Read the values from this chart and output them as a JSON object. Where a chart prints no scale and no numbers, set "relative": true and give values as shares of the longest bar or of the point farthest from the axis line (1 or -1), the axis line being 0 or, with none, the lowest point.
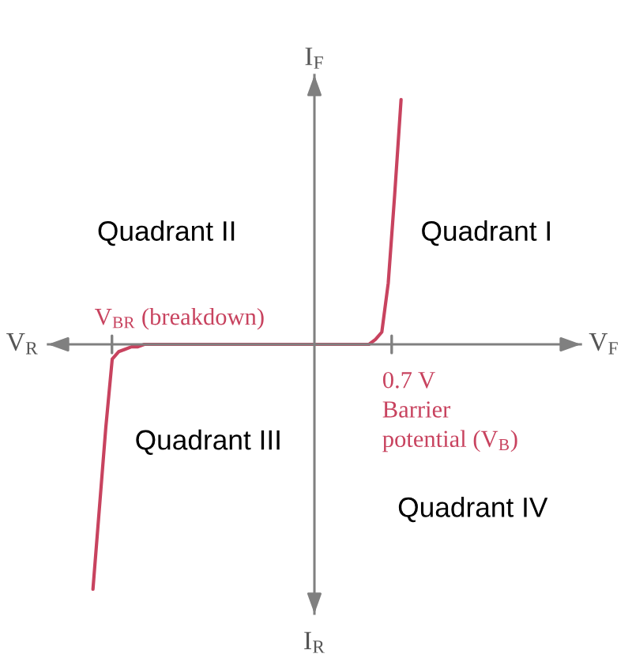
{
  "chart_data": {
    "type": "line",
    "relative": true,
    "xlabel": "V$_{F}$",
    "ylabel": "I$_{F}$",
    "categories": [
      null,
      null,
      null,
      null,
      null,
      null,
      null,
      null,
      null,
      null,
      null,
      null,
      null,
      null,
      null,
      null,
      null,
      null,
      null,
      null,
      null,
      null,
      null,
      null,
      null,
      null,
      null,
      null,
      null,
      null,
      null,
      null,
      null,
      null,
      null,
      null,
      null,
      null,
      null,
      null,
      null,
      null,
      null,
      null,
      null,
      null,
      null,
      null,
      null,
      null,
      null,
      null,
      null,
      null,
      null,
      null,
      null,
      null,
      null,
      null,
      null,
      null,
      null,
      null,
      null,
      null,
      null,
      null,
      null,
      null,
      null,
      null,
      null,
      null,
      null,
      null,
      null,
      null,
      null,
      null,
      null,
      null,
      null,
      null
    ],
    "series": [
      {
        "color": "#c8435f",
        "values": [
          null,
          null,
          null,
          null,
          null,
          null,
          null,
          -1,
          -0.67,
          -0.34,
          -0.06,
          -0.03,
          -0.02,
          -0.01,
          -0.01,
          0,
          0,
          0,
          0,
          0,
          0,
          0,
          0,
          0,
          0,
          0,
          0,
          0,
          0,
          0,
          0,
          0,
          0,
          0,
          0,
          0,
          0,
          0,
          0,
          0,
          0,
          0,
          0,
          0,
          0,
          0,
          0,
          0,
          0,
          0,
          0,
          0.02,
          0.05,
          0.25,
          0.61,
          1,
          null,
          null,
          null,
          null,
          null,
          null,
          null,
          null,
          null,
          null,
          null,
          null,
          null,
          null,
          null,
          null,
          null,
          null,
          null,
          null,
          null,
          null,
          null,
          null,
          null,
          null,
          null,
          null
        ]
      }
    ],
    "line_style": "solid",
    "marker": "none",
    "annotations": [
      "V$_{R}$",
      "I$_{R}$",
      "V$_{BR}$ (breakdown)",
      "0.7 V\nBarrier\npotential (V$_{B}$)",
      "Quadrant I",
      "Quadrant II",
      "Quadrant III",
      "Quadrant IV"
    ]
  }
}
